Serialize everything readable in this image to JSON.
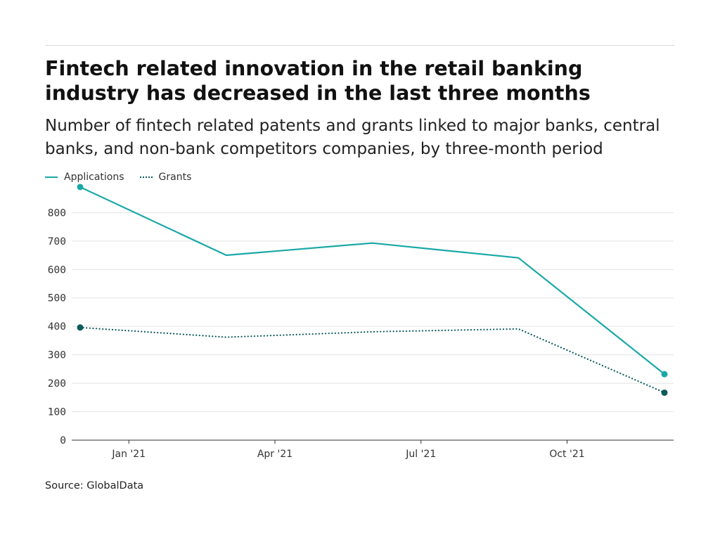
{
  "chart_data": {
    "type": "line",
    "title": "Fintech related innovation in the retail banking industry has decreased in the last three months",
    "subtitle": "Number of fintech related patents and grants linked to major banks, central banks, and non-bank competitors companies, by three-month period",
    "xlabel": "",
    "ylabel": "",
    "ylim": [
      0,
      880
    ],
    "yticks": [
      0,
      100,
      200,
      300,
      400,
      500,
      600,
      700,
      800
    ],
    "xticks": [
      "Jan '21",
      "Apr '21",
      "Jul '21",
      "Oct '21"
    ],
    "x": [
      "2020-12",
      "2021-03",
      "2021-06",
      "2021-09",
      "2021-12"
    ],
    "grid": true,
    "legend_placement": "top-left",
    "series": [
      {
        "name": "Applications",
        "values": [
          890,
          650,
          693,
          641,
          232
        ],
        "color": "#1aa8a8",
        "style": "solid"
      },
      {
        "name": "Grants",
        "values": [
          396,
          362,
          381,
          391,
          167
        ],
        "color": "#0b5a5c",
        "style": "dotted"
      }
    ],
    "source": "Source: GlobalData"
  }
}
